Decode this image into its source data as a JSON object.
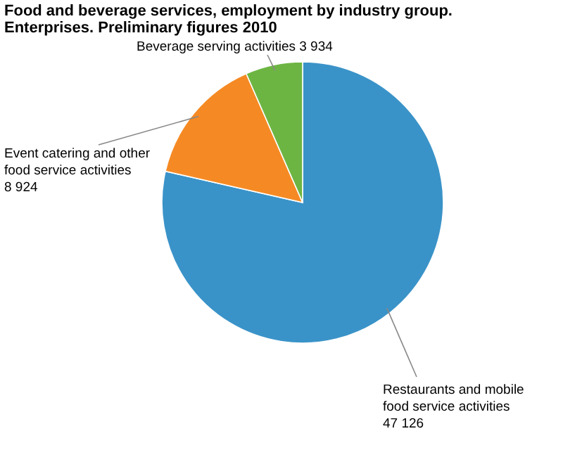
{
  "chart_data": {
    "type": "pie",
    "title": "Food and beverage services, employment by industry group. Enterprises. Preliminary figures 2010",
    "categories": [
      "Restaurants and mobile food service activities",
      "Event catering and other food service activities",
      "Beverage serving activities"
    ],
    "values": [
      47126,
      8924,
      3934
    ],
    "colors": [
      "#3a93c8",
      "#f58a24",
      "#6db543"
    ],
    "value_labels": [
      "47 126",
      "8 924",
      "3 934"
    ]
  }
}
